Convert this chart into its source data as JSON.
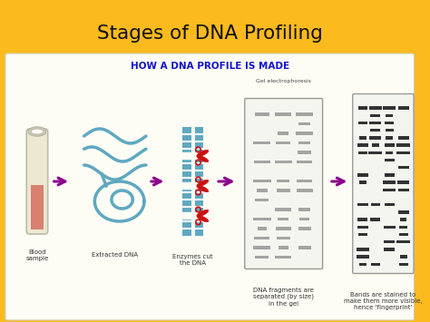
{
  "title": "Stages of DNA Profiling",
  "subtitle": "HOW A DNA PROFILE IS MADE",
  "bg_color": "#FBBA1E",
  "panel_bg": "#FDFDF5",
  "title_color": "#111111",
  "subtitle_color": "#1111CC",
  "label_blood": "Blood\nsample",
  "label_dna": "Extracted DNA",
  "label_enzymes": "Enzymes cut\nthe DNA",
  "label_gel": "DNA fragments are\nseparated (by size)\nin the gel",
  "label_bands": "Bands are stained to\nmake them more visible,\nhence 'fingerprint'",
  "label_gel_elec": "Gel electrophoresis",
  "arrow_color": "#8B008B",
  "scissors_color": "#CC1111",
  "dna_color": "#5FA8C0",
  "tube_body_color": "#EDE8D0",
  "tube_liquid_color": "#D98070",
  "tube_rim_color": "#D8D0B0",
  "tube_outline": "#BBBBAA"
}
